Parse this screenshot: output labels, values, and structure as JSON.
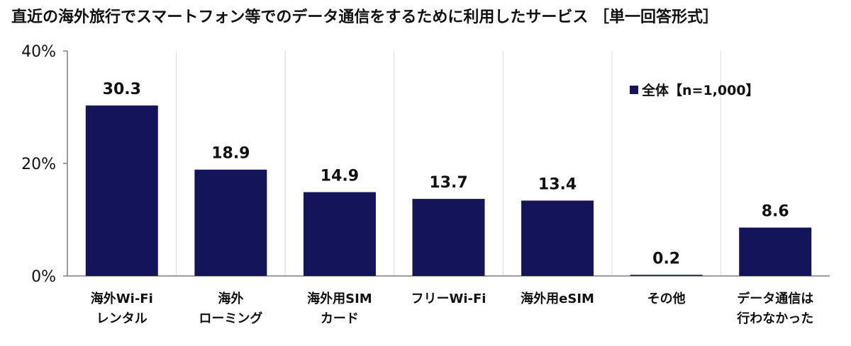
{
  "chart_data": {
    "type": "bar",
    "title": "直近の海外旅行でスマートフォン等でのデータ通信をするために利用したサービス ［単一回答形式］",
    "categories": [
      [
        "海外Wi-Fi",
        "レンタル"
      ],
      [
        "海外",
        "ローミング"
      ],
      [
        "海外用SIM",
        "カード"
      ],
      [
        "フリーWi-Fi"
      ],
      [
        "海外用eSIM"
      ],
      [
        "その他"
      ],
      [
        "データ通信は",
        "行わなかった"
      ]
    ],
    "series": [
      {
        "name": "全体【n=1,000】",
        "values": [
          30.3,
          18.9,
          14.9,
          13.7,
          13.4,
          0.2,
          8.6
        ],
        "value_labels": [
          "30.3",
          "18.9",
          "14.9",
          "13.7",
          "13.4",
          "0.2",
          "8.6"
        ]
      }
    ],
    "ylim": [
      0,
      40
    ],
    "yticks": [
      0,
      20,
      40
    ],
    "ytick_labels": [
      "0%",
      "20%",
      "40%"
    ],
    "xlabel": "",
    "ylabel": "",
    "grid": "vertical separators between categories",
    "legend_position": "top-right",
    "colors": {
      "bar": "#14145a",
      "axis": "#7f7f7f",
      "grid": "#d9d9d9",
      "text": "#111111"
    }
  }
}
